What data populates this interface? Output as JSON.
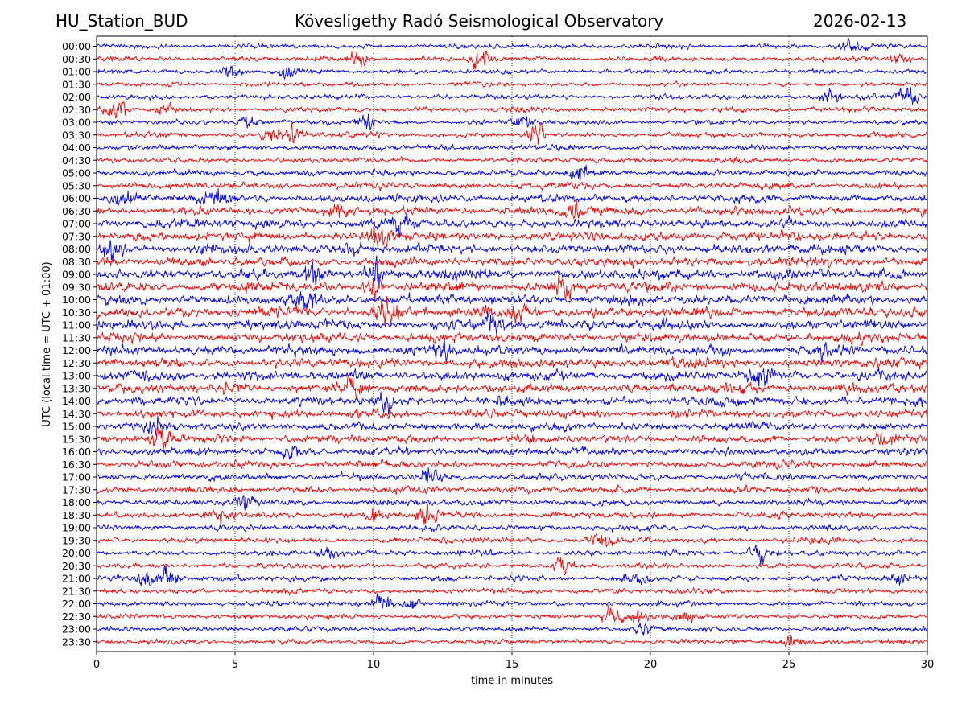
{
  "header": {
    "station": "HU_Station_BUD",
    "observatory": "Kövesligethy Radó Seismological Observatory",
    "date": "2026-02-13"
  },
  "chart_data": {
    "type": "line",
    "subtype": "helicorder",
    "title": "Kövesligethy Radó Seismological Observatory",
    "xlabel": "time in minutes",
    "ylabel": "UTC (local time = UTC + 01:00)",
    "xlim": [
      0,
      30
    ],
    "x_ticks": [
      "0",
      "5",
      "10",
      "15",
      "20",
      "25",
      "30"
    ],
    "grid": "vertical dotted lines at each 5 minutes",
    "row_colors": [
      "#0000ff",
      "#ff0000"
    ],
    "rows": [
      {
        "label": "00:00",
        "amp": 0.3,
        "events": [
          {
            "t": 27.3,
            "a": 0.6
          }
        ]
      },
      {
        "label": "00:30",
        "amp": 0.3,
        "events": [
          {
            "t": 9.5,
            "a": 0.7
          },
          {
            "t": 13.8,
            "a": 0.9
          },
          {
            "t": 29.0,
            "a": 0.5
          }
        ]
      },
      {
        "label": "01:00",
        "amp": 0.3,
        "events": [
          {
            "t": 4.8,
            "a": 0.6
          },
          {
            "t": 6.9,
            "a": 0.7
          }
        ]
      },
      {
        "label": "01:30",
        "amp": 0.28,
        "events": []
      },
      {
        "label": "02:00",
        "amp": 0.3,
        "events": [
          {
            "t": 26.5,
            "a": 0.6
          },
          {
            "t": 29.3,
            "a": 1.1
          }
        ]
      },
      {
        "label": "02:30",
        "amp": 0.32,
        "events": [
          {
            "t": 0.7,
            "a": 0.9
          },
          {
            "t": 2.5,
            "a": 0.5
          }
        ]
      },
      {
        "label": "03:00",
        "amp": 0.3,
        "events": [
          {
            "t": 5.5,
            "a": 0.5
          },
          {
            "t": 9.7,
            "a": 0.7
          },
          {
            "t": 15.5,
            "a": 0.5
          }
        ]
      },
      {
        "label": "03:30",
        "amp": 0.32,
        "events": [
          {
            "t": 6.3,
            "a": 0.6
          },
          {
            "t": 7.2,
            "a": 0.8
          },
          {
            "t": 15.9,
            "a": 0.6
          }
        ]
      },
      {
        "label": "04:00",
        "amp": 0.34,
        "events": []
      },
      {
        "label": "04:30",
        "amp": 0.34,
        "events": []
      },
      {
        "label": "05:00",
        "amp": 0.38,
        "events": [
          {
            "t": 17.4,
            "a": 0.5
          }
        ]
      },
      {
        "label": "05:30",
        "amp": 0.4,
        "events": []
      },
      {
        "label": "06:00",
        "amp": 0.48,
        "events": [
          {
            "t": 1.0,
            "a": 0.7
          },
          {
            "t": 4.3,
            "a": 0.7
          }
        ]
      },
      {
        "label": "06:30",
        "amp": 0.52,
        "events": [
          {
            "t": 8.7,
            "a": 0.8
          },
          {
            "t": 17.2,
            "a": 0.6
          }
        ]
      },
      {
        "label": "07:00",
        "amp": 0.55,
        "events": [
          {
            "t": 11.0,
            "a": 0.8
          }
        ]
      },
      {
        "label": "07:30",
        "amp": 0.55,
        "events": [
          {
            "t": 10.2,
            "a": 0.9
          }
        ]
      },
      {
        "label": "08:00",
        "amp": 0.58,
        "events": [
          {
            "t": 0.6,
            "a": 0.8
          },
          {
            "t": 9.2,
            "a": 0.7
          }
        ]
      },
      {
        "label": "08:30",
        "amp": 0.58,
        "events": []
      },
      {
        "label": "09:00",
        "amp": 0.62,
        "events": [
          {
            "t": 7.8,
            "a": 0.9
          },
          {
            "t": 10.1,
            "a": 0.8
          }
        ]
      },
      {
        "label": "09:30",
        "amp": 0.62,
        "events": [
          {
            "t": 10.0,
            "a": 0.8
          },
          {
            "t": 16.8,
            "a": 0.8
          }
        ]
      },
      {
        "label": "10:00",
        "amp": 0.62,
        "events": [
          {
            "t": 7.6,
            "a": 0.7
          }
        ]
      },
      {
        "label": "10:30",
        "amp": 0.62,
        "events": [
          {
            "t": 10.5,
            "a": 1.0
          },
          {
            "t": 15.4,
            "a": 0.7
          }
        ]
      },
      {
        "label": "11:00",
        "amp": 0.6,
        "events": [
          {
            "t": 14.3,
            "a": 0.8
          }
        ]
      },
      {
        "label": "11:30",
        "amp": 0.58,
        "events": []
      },
      {
        "label": "12:00",
        "amp": 0.6,
        "events": [
          {
            "t": 12.5,
            "a": 0.8
          },
          {
            "t": 26.3,
            "a": 0.6
          }
        ]
      },
      {
        "label": "12:30",
        "amp": 0.6,
        "events": []
      },
      {
        "label": "13:00",
        "amp": 0.58,
        "events": [
          {
            "t": 24.0,
            "a": 0.8
          }
        ]
      },
      {
        "label": "13:30",
        "amp": 0.58,
        "events": [
          {
            "t": 9.2,
            "a": 0.9
          },
          {
            "t": 5.0,
            "a": 0.6
          }
        ]
      },
      {
        "label": "14:00",
        "amp": 0.55,
        "events": [
          {
            "t": 10.4,
            "a": 0.7
          }
        ]
      },
      {
        "label": "14:30",
        "amp": 0.52,
        "events": []
      },
      {
        "label": "15:00",
        "amp": 0.5,
        "events": [
          {
            "t": 2.0,
            "a": 0.6
          }
        ]
      },
      {
        "label": "15:30",
        "amp": 0.48,
        "events": [
          {
            "t": 2.3,
            "a": 0.9
          },
          {
            "t": 28.4,
            "a": 0.6
          }
        ]
      },
      {
        "label": "16:00",
        "amp": 0.46,
        "events": [
          {
            "t": 7.0,
            "a": 0.5
          }
        ]
      },
      {
        "label": "16:30",
        "amp": 0.44,
        "events": []
      },
      {
        "label": "17:00",
        "amp": 0.42,
        "events": [
          {
            "t": 12.0,
            "a": 0.5
          }
        ]
      },
      {
        "label": "17:30",
        "amp": 0.4,
        "events": []
      },
      {
        "label": "18:00",
        "amp": 0.4,
        "events": [
          {
            "t": 5.4,
            "a": 0.6
          }
        ]
      },
      {
        "label": "18:30",
        "amp": 0.38,
        "events": [
          {
            "t": 4.3,
            "a": 0.6
          },
          {
            "t": 10.1,
            "a": 0.6
          },
          {
            "t": 11.9,
            "a": 0.7
          }
        ]
      },
      {
        "label": "19:00",
        "amp": 0.36,
        "events": []
      },
      {
        "label": "19:30",
        "amp": 0.36,
        "events": [
          {
            "t": 18.2,
            "a": 0.6
          }
        ]
      },
      {
        "label": "20:00",
        "amp": 0.34,
        "events": [
          {
            "t": 8.4,
            "a": 0.5
          },
          {
            "t": 23.9,
            "a": 0.8
          }
        ]
      },
      {
        "label": "20:30",
        "amp": 0.32,
        "events": [
          {
            "t": 16.8,
            "a": 0.7
          }
        ]
      },
      {
        "label": "21:00",
        "amp": 0.34,
        "events": [
          {
            "t": 1.9,
            "a": 0.7
          },
          {
            "t": 2.6,
            "a": 0.7
          },
          {
            "t": 19.4,
            "a": 0.6
          },
          {
            "t": 29.0,
            "a": 0.7
          }
        ]
      },
      {
        "label": "21:30",
        "amp": 0.32,
        "events": []
      },
      {
        "label": "22:00",
        "amp": 0.32,
        "events": [
          {
            "t": 10.3,
            "a": 0.7
          },
          {
            "t": 11.4,
            "a": 0.6
          }
        ]
      },
      {
        "label": "22:30",
        "amp": 0.3,
        "events": [
          {
            "t": 18.6,
            "a": 1.0
          },
          {
            "t": 19.4,
            "a": 0.6
          },
          {
            "t": 21.3,
            "a": 0.5
          }
        ]
      },
      {
        "label": "23:00",
        "amp": 0.3,
        "events": [
          {
            "t": 19.8,
            "a": 0.6
          }
        ]
      },
      {
        "label": "23:30",
        "amp": 0.3,
        "events": [
          {
            "t": 25.1,
            "a": 0.5
          }
        ]
      }
    ]
  }
}
